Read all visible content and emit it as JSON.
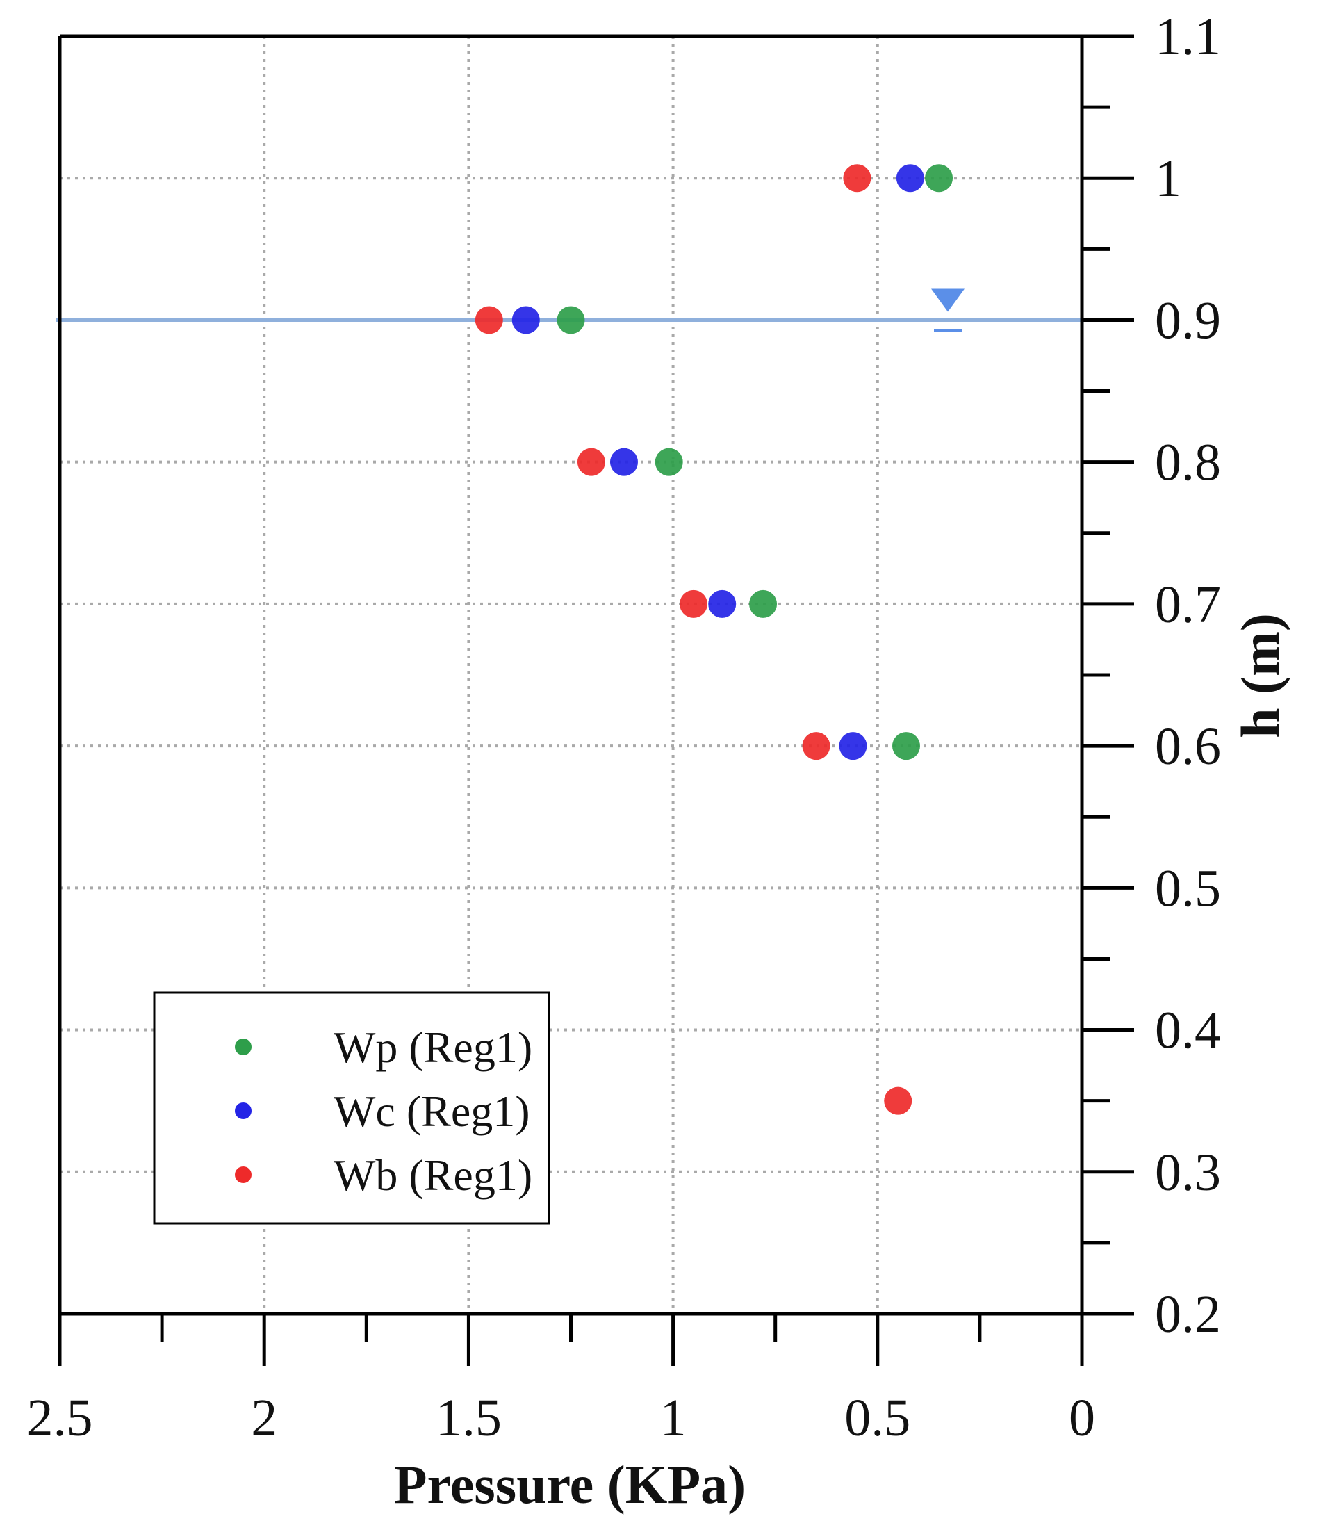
{
  "chart_data": {
    "type": "scatter",
    "xlabel": "Pressure (KPa)",
    "ylabel": "h (m)",
    "xlim": [
      0,
      2.5
    ],
    "x_reversed": true,
    "ylim": [
      0.2,
      1.1
    ],
    "x_ticks": [
      "2.5",
      "2",
      "1.5",
      "1",
      "0.5",
      "0"
    ],
    "x_tick_values": [
      2.5,
      2,
      1.5,
      1,
      0.5,
      0
    ],
    "y_ticks": [
      "1.1",
      "1",
      "0.9",
      "0.8",
      "0.7",
      "0.6",
      "0.5",
      "0.4",
      "0.3",
      "0.2"
    ],
    "y_tick_values": [
      1.1,
      1,
      0.9,
      0.8,
      0.7,
      0.6,
      0.5,
      0.4,
      0.3,
      0.2
    ],
    "x_minor_values": [
      2.25,
      1.75,
      1.25,
      0.75,
      0.25
    ],
    "y_minor_values": [
      1.05,
      0.95,
      0.85,
      0.75,
      0.65,
      0.55,
      0.45,
      0.35,
      0.25
    ],
    "grid": true,
    "y_axis_side": "right",
    "legend_position": "bottom-left",
    "water_level": 0.9,
    "series": [
      {
        "name": "Wp (Reg1)",
        "color": "#2e9e4a",
        "points": [
          {
            "x": 0.35,
            "y": 1.0
          },
          {
            "x": 1.25,
            "y": 0.9
          },
          {
            "x": 1.01,
            "y": 0.8
          },
          {
            "x": 0.78,
            "y": 0.7
          },
          {
            "x": 0.43,
            "y": 0.6
          }
        ]
      },
      {
        "name": "Wc (Reg1)",
        "color": "#2424e6",
        "points": [
          {
            "x": 0.42,
            "y": 1.0
          },
          {
            "x": 1.36,
            "y": 0.9
          },
          {
            "x": 1.12,
            "y": 0.8
          },
          {
            "x": 0.88,
            "y": 0.7
          },
          {
            "x": 0.56,
            "y": 0.6
          }
        ]
      },
      {
        "name": "Wb (Reg1)",
        "color": "#ee2a2a",
        "points": [
          {
            "x": 0.55,
            "y": 1.0
          },
          {
            "x": 1.45,
            "y": 0.9
          },
          {
            "x": 1.2,
            "y": 0.8
          },
          {
            "x": 0.95,
            "y": 0.7
          },
          {
            "x": 0.65,
            "y": 0.6
          },
          {
            "x": 0.45,
            "y": 0.35
          }
        ]
      }
    ]
  },
  "colors": {
    "grid": "#a9a9a9",
    "axis": "#000000",
    "water_line": "#8fb0dc",
    "water_marker": "#5b8fe8"
  }
}
